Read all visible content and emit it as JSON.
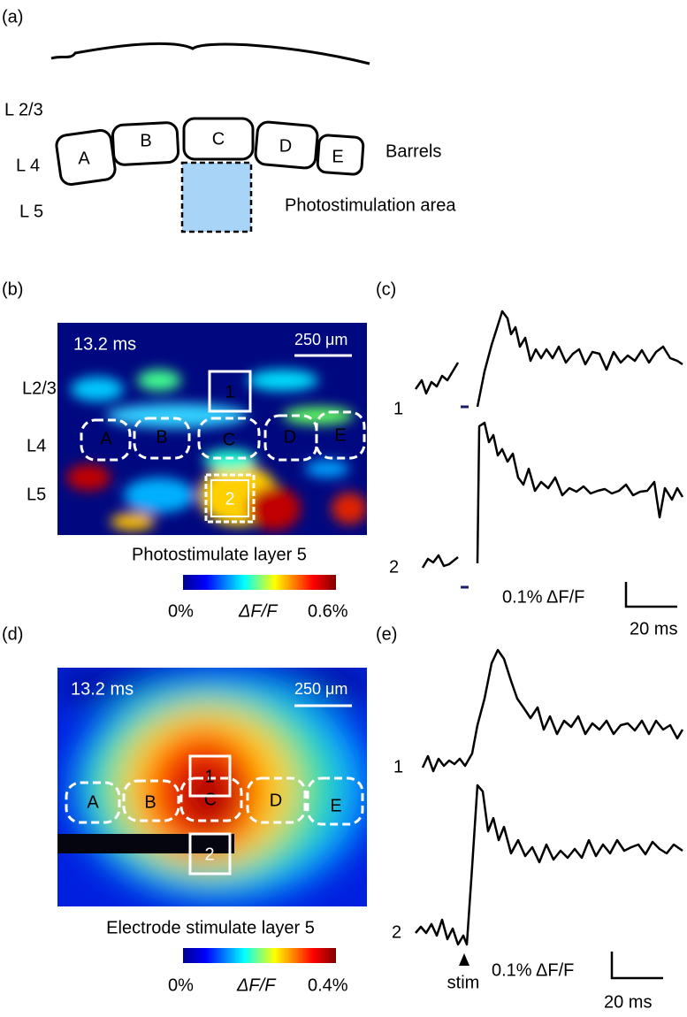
{
  "panel_a": {
    "label": "(a)",
    "layers": [
      "L 2/3",
      "L 4",
      "L 5"
    ],
    "barrels": [
      "A",
      "B",
      "C",
      "D",
      "E"
    ],
    "barrels_label": "Barrels",
    "area_label": "Photostimulation area"
  },
  "panel_b": {
    "label": "(b)",
    "time": "13.2 ms",
    "scale_bar": "250 μm",
    "layers": [
      "L2/3",
      "L4",
      "L5"
    ],
    "barrels": [
      "A",
      "B",
      "C",
      "D",
      "E"
    ],
    "rois": [
      "1",
      "2"
    ],
    "caption": "Photostimulate layer 5",
    "colorbar": {
      "min": "0%",
      "label": "ΔF/F",
      "max": "0.6%"
    }
  },
  "panel_c": {
    "label": "(c)",
    "traces": [
      "1",
      "2"
    ],
    "scale_y": "0.1% ΔF/F",
    "scale_x": "20 ms"
  },
  "panel_d": {
    "label": "(d)",
    "time": "13.2 ms",
    "scale_bar": "250 μm",
    "barrels": [
      "A",
      "B",
      "C",
      "D",
      "E"
    ],
    "rois": [
      "1",
      "2"
    ],
    "caption": "Electrode stimulate layer 5",
    "colorbar": {
      "min": "0%",
      "label": "ΔF/F",
      "max": "0.4%"
    }
  },
  "panel_e": {
    "label": "(e)",
    "traces": [
      "1",
      "2"
    ],
    "stim": "stim",
    "scale_y": "0.1% ΔF/F",
    "scale_x": "20 ms"
  }
}
